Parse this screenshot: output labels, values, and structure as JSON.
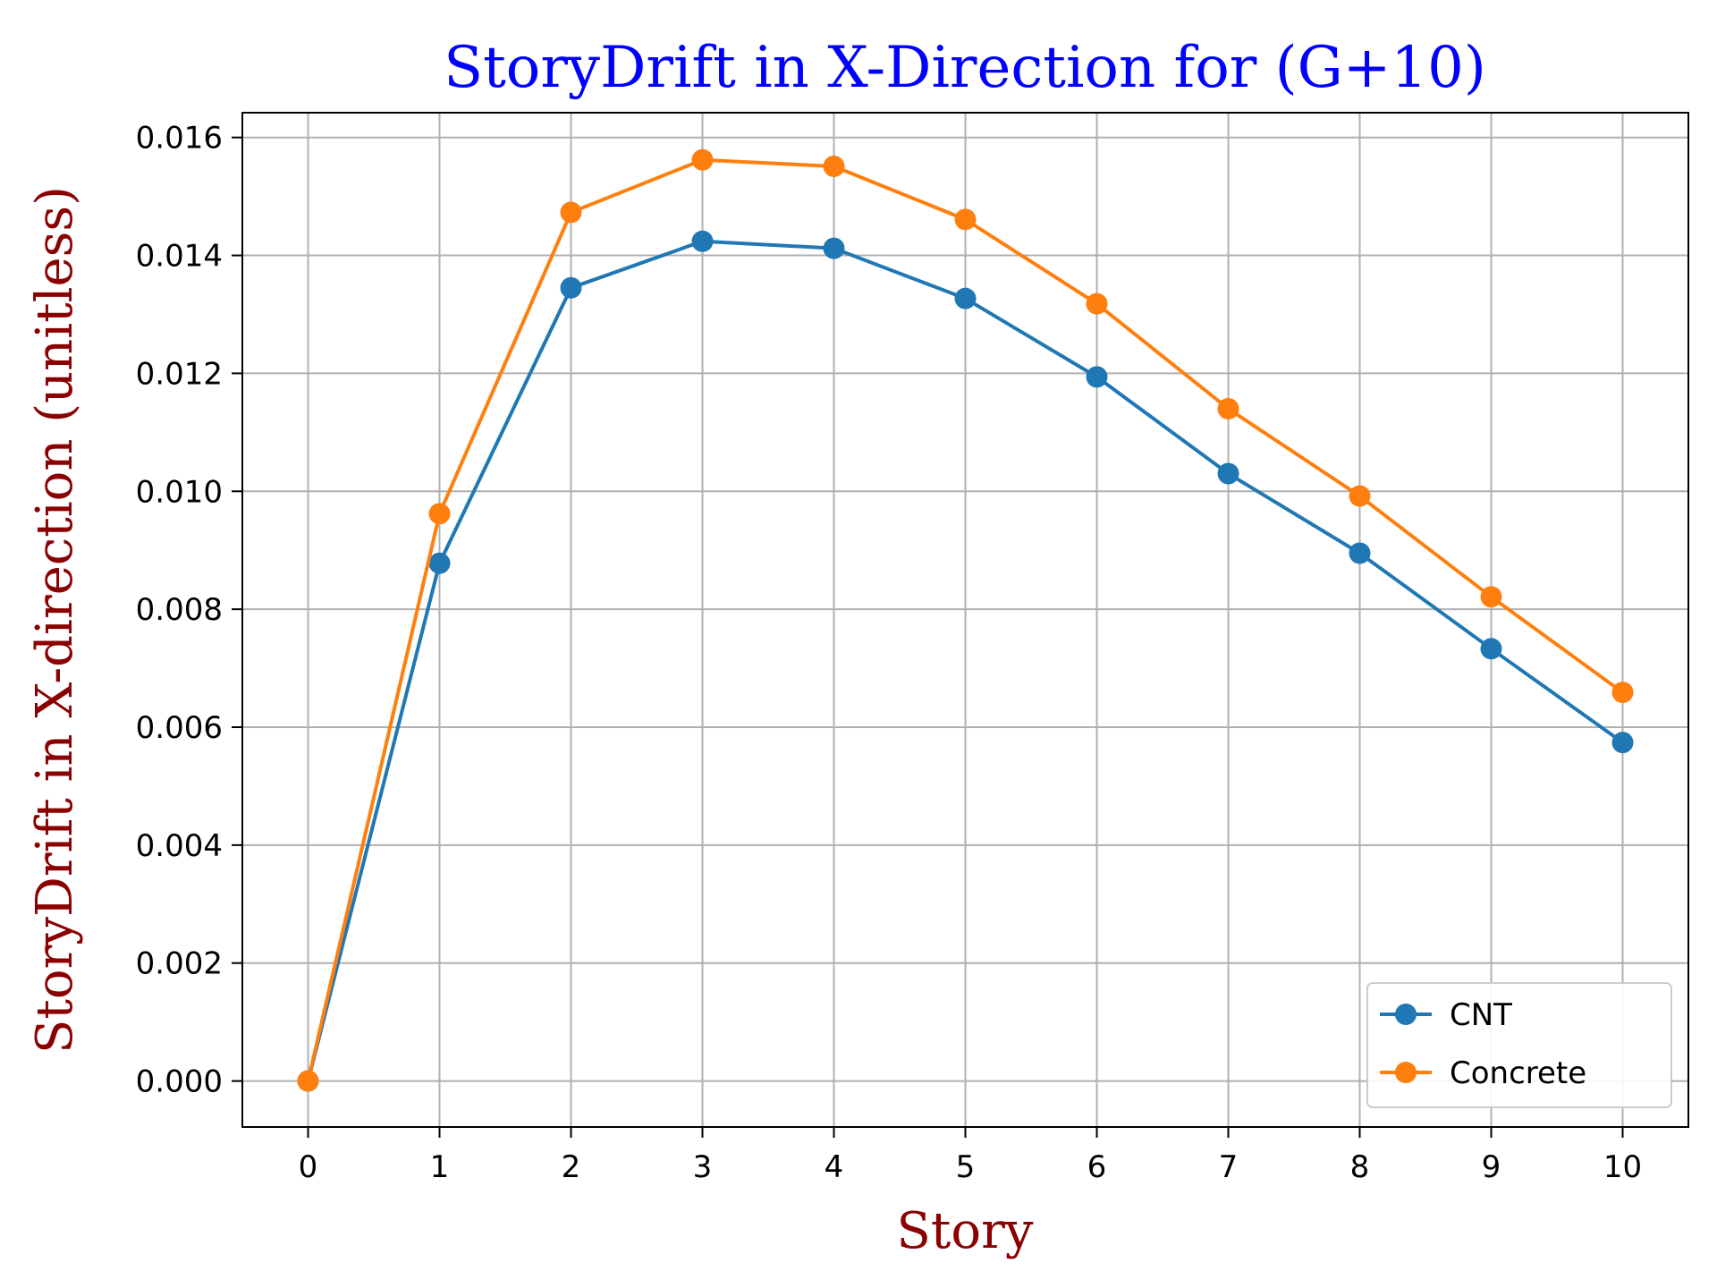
{
  "chart_data": {
    "type": "line",
    "title": "StoryDrift in X-Direction for (G+10)",
    "xlabel": "Story",
    "ylabel": "StoryDrift in X-direction (unitless)",
    "x": [
      0,
      1,
      2,
      3,
      4,
      5,
      6,
      7,
      8,
      9,
      10
    ],
    "xticks": [
      "0",
      "1",
      "2",
      "3",
      "4",
      "5",
      "6",
      "7",
      "8",
      "9",
      "10"
    ],
    "yticks": [
      "0.000",
      "0.002",
      "0.004",
      "0.006",
      "0.008",
      "0.010",
      "0.012",
      "0.014",
      "0.016"
    ],
    "xlim": [
      -0.5,
      10.5
    ],
    "ylim": [
      -0.00078,
      0.01642
    ],
    "grid": true,
    "legend_position": "lower-right",
    "series": [
      {
        "name": "CNT",
        "color": "#1f77b4",
        "marker": "circle",
        "values": [
          0.0,
          0.00878,
          0.01345,
          0.01424,
          0.01412,
          0.01327,
          0.01194,
          0.0103,
          0.00895,
          0.00733,
          0.00574
        ]
      },
      {
        "name": "Concrete",
        "color": "#ff7f0e",
        "marker": "circle",
        "values": [
          0.0,
          0.00962,
          0.01473,
          0.01562,
          0.01551,
          0.01461,
          0.01318,
          0.0114,
          0.00992,
          0.00821,
          0.00659
        ]
      }
    ],
    "colors": {
      "title": "#0000ff",
      "axis_labels": "#8b0000",
      "grid": "#b0b0b0"
    }
  }
}
